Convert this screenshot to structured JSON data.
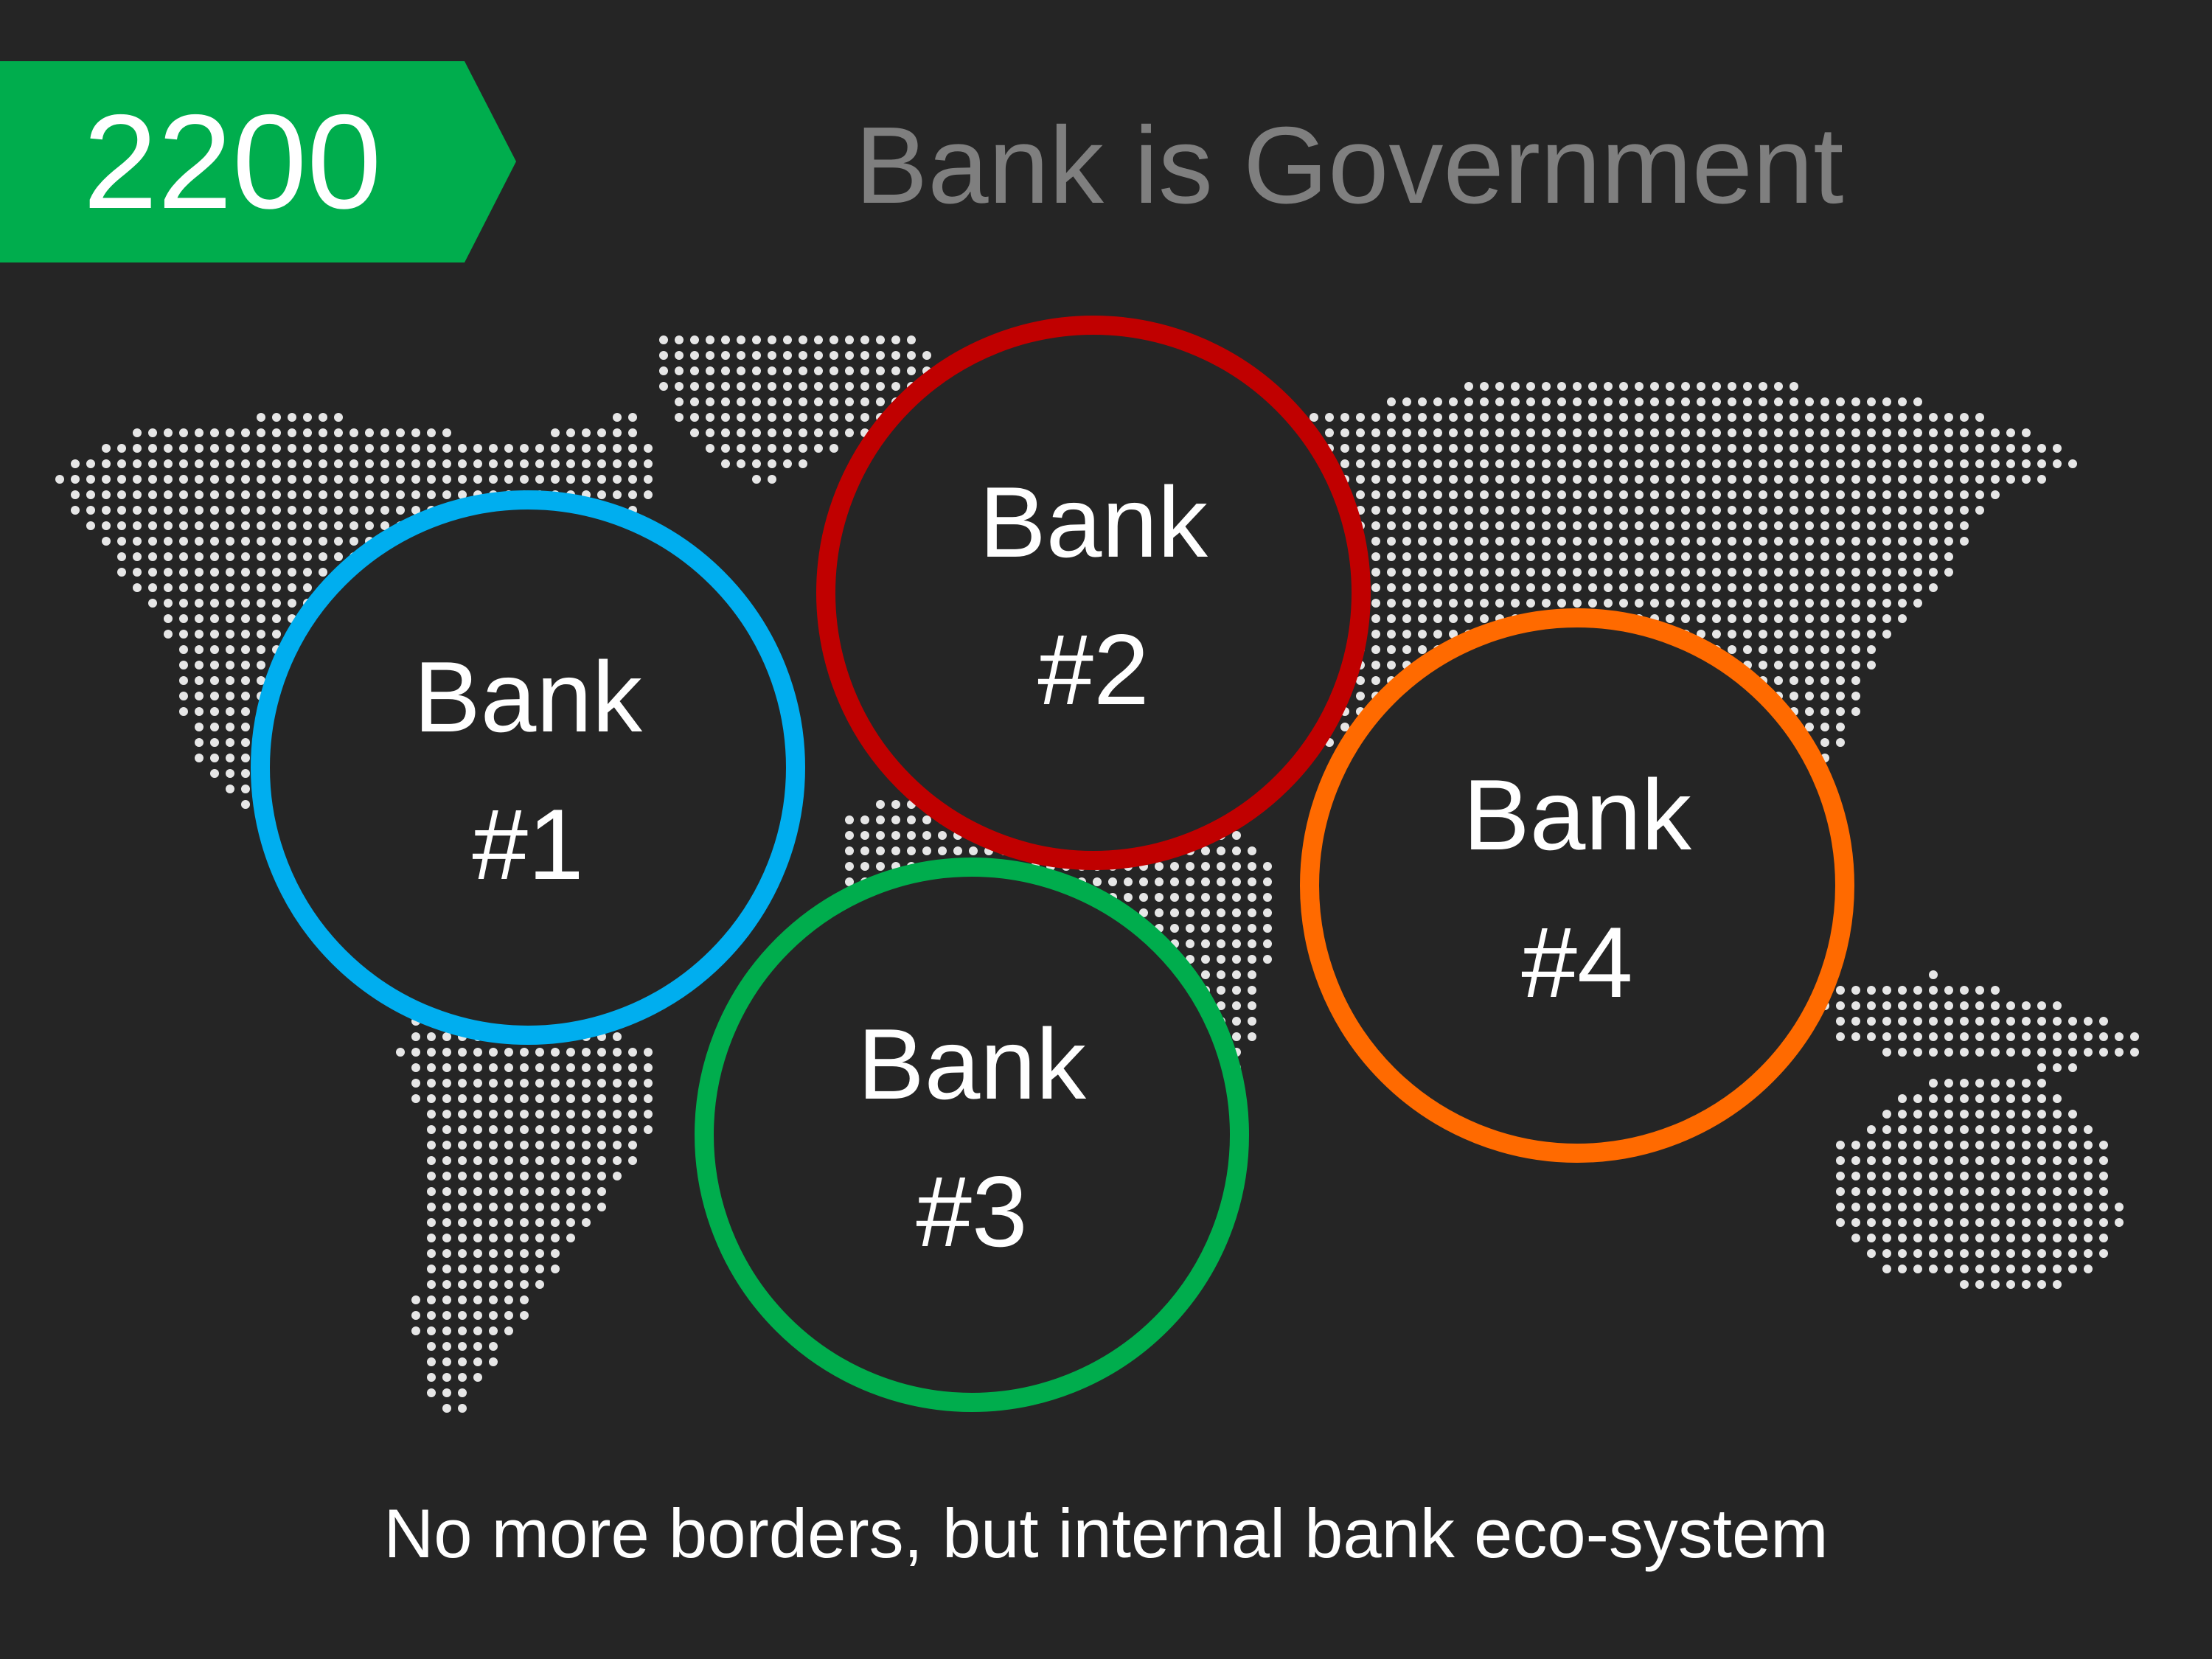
{
  "year": "2200",
  "title": "Bank is Government",
  "caption": "No more borders, but internal bank eco-system",
  "banner_color": "#00ad4d",
  "map_dot_color": "#e6e6e6",
  "banks": [
    {
      "line1": "Bank",
      "line2": "#1",
      "color": "#00aeef"
    },
    {
      "line1": "Bank",
      "line2": "#2",
      "color": "#c00000"
    },
    {
      "line1": "Bank",
      "line2": "#3",
      "color": "#00ad4d"
    },
    {
      "line1": "Bank",
      "line2": "#4",
      "color": "#ff6a00"
    }
  ]
}
